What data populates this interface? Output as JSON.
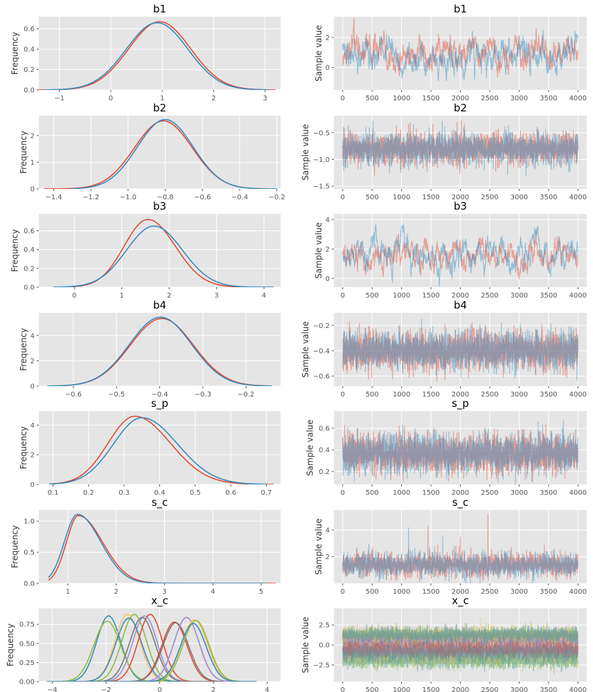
{
  "chart_data": [
    {
      "type": "line",
      "panel": "density",
      "title": "b1",
      "ylabel": "Frequency",
      "xlim": [
        -1.4,
        3.3
      ],
      "ylim": [
        0,
        0.72
      ],
      "xticks": [
        -1,
        0,
        1,
        2,
        3
      ],
      "yticks": [
        0.0,
        0.2,
        0.4,
        0.6
      ],
      "ytick_decimals": 1,
      "series": [
        {
          "color": "#E24A33",
          "dist": {
            "kind": "normal",
            "mean": 0.95,
            "sd": 0.6,
            "peak": 0.67
          },
          "range": [
            -1.4,
            3.2
          ]
        },
        {
          "color": "#348ABD",
          "dist": {
            "kind": "normal",
            "mean": 0.9,
            "sd": 0.6,
            "peak": 0.66
          },
          "range": [
            -1.3,
            3.1
          ]
        }
      ]
    },
    {
      "type": "line",
      "panel": "trace",
      "title": "b1",
      "ylabel": "Sample value",
      "xlim": [
        -150,
        4150
      ],
      "ylim": [
        -1.5,
        3.4
      ],
      "xticks": [
        0,
        500,
        1000,
        1500,
        2000,
        2500,
        3000,
        3500,
        4000
      ],
      "yticks": [
        0,
        2
      ],
      "ytick_decimals": 0,
      "n": 4000,
      "series": [
        {
          "color": "#E24A33",
          "center": 1.0,
          "sd": 0.58,
          "rho": 0.96,
          "opacity": 0.45,
          "seed": 11
        },
        {
          "color": "#348ABD",
          "center": 0.9,
          "sd": 0.58,
          "rho": 0.96,
          "opacity": 0.45,
          "seed": 12
        }
      ]
    },
    {
      "type": "line",
      "panel": "density",
      "title": "b2",
      "ylabel": "Frequency",
      "xlim": [
        -1.48,
        -0.18
      ],
      "ylim": [
        0,
        2.75
      ],
      "xticks": [
        -1.4,
        -1.2,
        -1.0,
        -0.8,
        -0.6,
        -0.4,
        -0.2
      ],
      "yticks": [
        0,
        1,
        2
      ],
      "ytick_decimals": 0,
      "series": [
        {
          "color": "#E24A33",
          "dist": {
            "kind": "normal",
            "mean": -0.81,
            "sd": 0.155,
            "peak": 2.55
          },
          "range": [
            -1.45,
            -0.25
          ]
        },
        {
          "color": "#348ABD",
          "dist": {
            "kind": "normal",
            "mean": -0.8,
            "sd": 0.15,
            "peak": 2.6
          },
          "range": [
            -1.3,
            -0.2
          ]
        }
      ]
    },
    {
      "type": "line",
      "panel": "trace",
      "title": "b2",
      "ylabel": "Sample value",
      "xlim": [
        -150,
        4150
      ],
      "ylim": [
        -1.55,
        -0.18
      ],
      "xticks": [
        0,
        500,
        1000,
        1500,
        2000,
        2500,
        3000,
        3500,
        4000
      ],
      "yticks": [
        -1.5,
        -1.0,
        -0.5
      ],
      "ytick_decimals": 1,
      "n": 4000,
      "series": [
        {
          "color": "#E24A33",
          "center": -0.8,
          "sd": 0.15,
          "rho": 0.3,
          "opacity": 0.45,
          "seed": 21
        },
        {
          "color": "#348ABD",
          "center": -0.8,
          "sd": 0.15,
          "rho": 0.3,
          "opacity": 0.45,
          "seed": 22
        }
      ]
    },
    {
      "type": "line",
      "panel": "density",
      "title": "b3",
      "ylabel": "Frequency",
      "xlim": [
        -0.75,
        4.35
      ],
      "ylim": [
        0,
        0.78
      ],
      "xticks": [
        0,
        1,
        2,
        3,
        4
      ],
      "yticks": [
        0.0,
        0.2,
        0.4,
        0.6
      ],
      "ytick_decimals": 1,
      "series": [
        {
          "color": "#E24A33",
          "dist": {
            "kind": "skew",
            "mode": 1.55,
            "sdl": 0.5,
            "sdr": 0.58,
            "peak": 0.72
          },
          "range": [
            -0.1,
            4.2
          ]
        },
        {
          "color": "#348ABD",
          "dist": {
            "kind": "skew",
            "mode": 1.68,
            "sdl": 0.58,
            "sdr": 0.6,
            "peak": 0.65
          },
          "range": [
            -0.45,
            4.2
          ]
        }
      ]
    },
    {
      "type": "line",
      "panel": "trace",
      "title": "b3",
      "ylabel": "Sample value",
      "xlim": [
        -150,
        4150
      ],
      "ylim": [
        -0.6,
        4.4
      ],
      "xticks": [
        0,
        500,
        1000,
        1500,
        2000,
        2500,
        3000,
        3500,
        4000
      ],
      "yticks": [
        0,
        2,
        4
      ],
      "ytick_decimals": 0,
      "n": 4000,
      "series": [
        {
          "color": "#E24A33",
          "center": 1.6,
          "sd": 0.55,
          "rho": 0.97,
          "opacity": 0.45,
          "seed": 31
        },
        {
          "color": "#348ABD",
          "center": 1.7,
          "sd": 0.6,
          "rho": 0.97,
          "opacity": 0.45,
          "seed": 32
        }
      ]
    },
    {
      "type": "line",
      "panel": "density",
      "title": "b4",
      "ylabel": "Frequency",
      "xlim": [
        -0.68,
        -0.12
      ],
      "ylim": [
        0,
        5.8
      ],
      "xticks": [
        -0.6,
        -0.5,
        -0.4,
        -0.3,
        -0.2
      ],
      "yticks": [
        0,
        2,
        4
      ],
      "ytick_decimals": 0,
      "series": [
        {
          "color": "#E24A33",
          "dist": {
            "kind": "normal",
            "mean": -0.395,
            "sd": 0.073,
            "peak": 5.35
          },
          "range": [
            -0.66,
            -0.14
          ]
        },
        {
          "color": "#348ABD",
          "dist": {
            "kind": "normal",
            "mean": -0.398,
            "sd": 0.072,
            "peak": 5.45
          },
          "range": [
            -0.66,
            -0.14
          ]
        }
      ]
    },
    {
      "type": "line",
      "panel": "trace",
      "title": "b4",
      "ylabel": "Sample value",
      "xlim": [
        -150,
        4150
      ],
      "ylim": [
        -0.68,
        -0.1
      ],
      "xticks": [
        0,
        500,
        1000,
        1500,
        2000,
        2500,
        3000,
        3500,
        4000
      ],
      "yticks": [
        -0.6,
        -0.4,
        -0.2
      ],
      "ytick_decimals": 1,
      "n": 4000,
      "series": [
        {
          "color": "#E24A33",
          "center": -0.4,
          "sd": 0.075,
          "rho": 0.2,
          "opacity": 0.45,
          "seed": 41
        },
        {
          "color": "#348ABD",
          "center": -0.4,
          "sd": 0.075,
          "rho": 0.2,
          "opacity": 0.45,
          "seed": 42
        }
      ]
    },
    {
      "type": "line",
      "panel": "density",
      "title": "s_p",
      "ylabel": "Frequency",
      "xlim": [
        0.06,
        0.74
      ],
      "ylim": [
        0,
        4.95
      ],
      "xticks": [
        0.1,
        0.2,
        0.3,
        0.4,
        0.5,
        0.6,
        0.7
      ],
      "yticks": [
        0,
        2,
        4
      ],
      "ytick_decimals": 0,
      "series": [
        {
          "color": "#E24A33",
          "dist": {
            "kind": "skew",
            "mode": 0.33,
            "sdl": 0.075,
            "sdr": 0.1,
            "peak": 4.6
          },
          "range": [
            0.09,
            0.72
          ]
        },
        {
          "color": "#348ABD",
          "dist": {
            "kind": "skew",
            "mode": 0.35,
            "sdl": 0.08,
            "sdr": 0.1,
            "peak": 4.5
          },
          "range": [
            0.09,
            0.7
          ]
        }
      ]
    },
    {
      "type": "line",
      "panel": "trace",
      "title": "s_p",
      "ylabel": "Sample value",
      "xlim": [
        -150,
        4150
      ],
      "ylim": [
        0.08,
        0.76
      ],
      "xticks": [
        0,
        500,
        1000,
        1500,
        2000,
        2500,
        3000,
        3500,
        4000
      ],
      "yticks": [
        0.2,
        0.4,
        0.6
      ],
      "ytick_decimals": 1,
      "n": 4000,
      "series": [
        {
          "color": "#E24A33",
          "center": 0.36,
          "sd": 0.09,
          "rho": 0.3,
          "opacity": 0.45,
          "seed": 51
        },
        {
          "color": "#348ABD",
          "center": 0.37,
          "sd": 0.09,
          "rho": 0.3,
          "opacity": 0.45,
          "seed": 52
        }
      ]
    },
    {
      "type": "line",
      "panel": "density",
      "title": "s_c",
      "ylabel": "Frequency",
      "xlim": [
        0.4,
        5.4
      ],
      "ylim": [
        0,
        1.18
      ],
      "xticks": [
        1,
        2,
        3,
        4,
        5
      ],
      "yticks": [
        0.0,
        0.5,
        1.0
      ],
      "ytick_decimals": 1,
      "series": [
        {
          "color": "#E24A33",
          "dist": {
            "kind": "skew",
            "mode": 1.22,
            "sdl": 0.25,
            "sdr": 0.5,
            "peak": 1.09
          },
          "range": [
            0.6,
            5.3
          ]
        },
        {
          "color": "#348ABD",
          "dist": {
            "kind": "skew",
            "mode": 1.2,
            "sdl": 0.27,
            "sdr": 0.48,
            "peak": 1.11
          },
          "range": [
            0.6,
            5.1
          ]
        }
      ]
    },
    {
      "type": "line",
      "panel": "trace",
      "title": "s_c",
      "ylabel": "Sample value",
      "xlim": [
        -150,
        4150
      ],
      "ylim": [
        0,
        5.5
      ],
      "xticks": [
        0,
        500,
        1000,
        1500,
        2000,
        2500,
        3000,
        3500,
        4000
      ],
      "yticks": [
        2,
        4
      ],
      "ytick_decimals": 0,
      "n": 4000,
      "series": [
        {
          "color": "#E24A33",
          "center": 1.4,
          "sd": 0.45,
          "rho": 0.5,
          "opacity": 0.45,
          "seed": 61,
          "spikes": [
            [
              1450,
              4.3
            ],
            [
              2470,
              5.2
            ],
            [
              2000,
              3.5
            ]
          ]
        },
        {
          "color": "#348ABD",
          "center": 1.4,
          "sd": 0.45,
          "rho": 0.5,
          "opacity": 0.45,
          "seed": 62,
          "spikes": [
            [
              1120,
              4.2
            ],
            [
              1700,
              3.6
            ]
          ]
        }
      ]
    },
    {
      "type": "line",
      "panel": "density",
      "title": "x_c",
      "ylabel": "Frequency",
      "xlim": [
        -4.5,
        4.5
      ],
      "ylim": [
        0,
        0.96
      ],
      "xticks": [
        -4,
        -2,
        0,
        2,
        4
      ],
      "yticks": [
        0.0,
        0.25,
        0.5,
        0.75
      ],
      "ytick_decimals": 2,
      "series": [
        {
          "color": "#348ABD",
          "dist": {
            "kind": "normal",
            "mean": -1.9,
            "sd": 0.45,
            "peak": 0.86
          },
          "range": [
            -4.2,
            3.6
          ]
        },
        {
          "color": "#8EBA42",
          "dist": {
            "kind": "normal",
            "mean": -1.95,
            "sd": 0.5,
            "peak": 0.79
          },
          "range": [
            -4.2,
            3.6
          ]
        },
        {
          "color": "#FBC15E",
          "dist": {
            "kind": "normal",
            "mean": -1.2,
            "sd": 0.46,
            "peak": 0.88
          },
          "range": [
            -4.2,
            3.6
          ]
        },
        {
          "color": "#8EBA42",
          "dist": {
            "kind": "normal",
            "mean": -0.95,
            "sd": 0.46,
            "peak": 0.88
          },
          "range": [
            -4.2,
            3.6
          ]
        },
        {
          "color": "#348ABD",
          "dist": {
            "kind": "normal",
            "mean": -1.15,
            "sd": 0.48,
            "peak": 0.83
          },
          "range": [
            -4.2,
            3.6
          ]
        },
        {
          "color": "#E24A33",
          "dist": {
            "kind": "normal",
            "mean": -0.35,
            "sd": 0.45,
            "peak": 0.88
          },
          "range": [
            -4.2,
            3.6
          ]
        },
        {
          "color": "#988ED5",
          "dist": {
            "kind": "normal",
            "mean": -0.55,
            "sd": 0.45,
            "peak": 0.86
          },
          "range": [
            -4.2,
            3.6
          ]
        },
        {
          "color": "#777777",
          "dist": {
            "kind": "normal",
            "mean": -0.65,
            "sd": 0.47,
            "peak": 0.84
          },
          "range": [
            -4.2,
            3.6
          ]
        },
        {
          "color": "#E24A33",
          "dist": {
            "kind": "normal",
            "mean": 0.55,
            "sd": 0.47,
            "peak": 0.78
          },
          "range": [
            -4.2,
            3.6
          ]
        },
        {
          "color": "#777777",
          "dist": {
            "kind": "normal",
            "mean": 0.6,
            "sd": 0.48,
            "peak": 0.77
          },
          "range": [
            -4.2,
            3.6
          ]
        },
        {
          "color": "#FFB5B8",
          "dist": {
            "kind": "normal",
            "mean": 1.0,
            "sd": 0.46,
            "peak": 0.84
          },
          "range": [
            -4.2,
            3.6
          ]
        },
        {
          "color": "#988ED5",
          "dist": {
            "kind": "normal",
            "mean": 1.0,
            "sd": 0.47,
            "peak": 0.84
          },
          "range": [
            -4.2,
            3.6
          ]
        },
        {
          "color": "#FBC15E",
          "dist": {
            "kind": "normal",
            "mean": 1.3,
            "sd": 0.48,
            "peak": 0.81
          },
          "range": [
            -4.2,
            3.6
          ]
        },
        {
          "color": "#8EBA42",
          "dist": {
            "kind": "normal",
            "mean": 1.35,
            "sd": 0.48,
            "peak": 0.8
          },
          "range": [
            -4.2,
            3.6
          ]
        },
        {
          "color": "#348ABD",
          "dist": {
            "kind": "normal",
            "mean": 1.25,
            "sd": 0.48,
            "peak": 0.76
          },
          "range": [
            -4.2,
            3.6
          ]
        }
      ]
    },
    {
      "type": "line",
      "panel": "trace",
      "title": "x_c",
      "ylabel": "Sample value",
      "xlim": [
        -150,
        4150
      ],
      "ylim": [
        -4.6,
        4.6
      ],
      "xticks": [
        0,
        500,
        1000,
        1500,
        2000,
        2500,
        3000,
        3500,
        4000
      ],
      "yticks": [
        -2.5,
        0.0,
        2.5
      ],
      "ytick_decimals": 1,
      "n": 4000,
      "series": [
        {
          "color": "#348ABD",
          "center": -1.9,
          "sd": 0.45,
          "rho": 0.3,
          "opacity": 0.45,
          "seed": 71
        },
        {
          "color": "#8EBA42",
          "center": -1.95,
          "sd": 0.5,
          "rho": 0.3,
          "opacity": 0.45,
          "seed": 72
        },
        {
          "color": "#FBC15E",
          "center": -1.2,
          "sd": 0.46,
          "rho": 0.3,
          "opacity": 0.45,
          "seed": 73
        },
        {
          "color": "#8EBA42",
          "center": -0.95,
          "sd": 0.46,
          "rho": 0.3,
          "opacity": 0.45,
          "seed": 74
        },
        {
          "color": "#348ABD",
          "center": -1.15,
          "sd": 0.48,
          "rho": 0.3,
          "opacity": 0.45,
          "seed": 75
        },
        {
          "color": "#E24A33",
          "center": -0.35,
          "sd": 0.45,
          "rho": 0.3,
          "opacity": 0.45,
          "seed": 76
        },
        {
          "color": "#988ED5",
          "center": -0.55,
          "sd": 0.45,
          "rho": 0.3,
          "opacity": 0.45,
          "seed": 77
        },
        {
          "color": "#777777",
          "center": -0.65,
          "sd": 0.47,
          "rho": 0.3,
          "opacity": 0.45,
          "seed": 78
        },
        {
          "color": "#E24A33",
          "center": 0.55,
          "sd": 0.47,
          "rho": 0.3,
          "opacity": 0.45,
          "seed": 79
        },
        {
          "color": "#777777",
          "center": 0.6,
          "sd": 0.48,
          "rho": 0.3,
          "opacity": 0.45,
          "seed": 80
        },
        {
          "color": "#FFB5B8",
          "center": 1.0,
          "sd": 0.46,
          "rho": 0.3,
          "opacity": 0.45,
          "seed": 81
        },
        {
          "color": "#988ED5",
          "center": 1.0,
          "sd": 0.47,
          "rho": 0.3,
          "opacity": 0.45,
          "seed": 82
        },
        {
          "color": "#FBC15E",
          "center": 1.3,
          "sd": 0.48,
          "rho": 0.3,
          "opacity": 0.45,
          "seed": 83
        },
        {
          "color": "#8EBA42",
          "center": 1.35,
          "sd": 0.48,
          "rho": 0.3,
          "opacity": 0.45,
          "seed": 84
        },
        {
          "color": "#348ABD",
          "center": 1.25,
          "sd": 0.48,
          "rho": 0.3,
          "opacity": 0.45,
          "seed": 85
        }
      ]
    }
  ],
  "style": {
    "panel_background": "#E5E5E5",
    "grid_color": "#FFFFFF"
  }
}
